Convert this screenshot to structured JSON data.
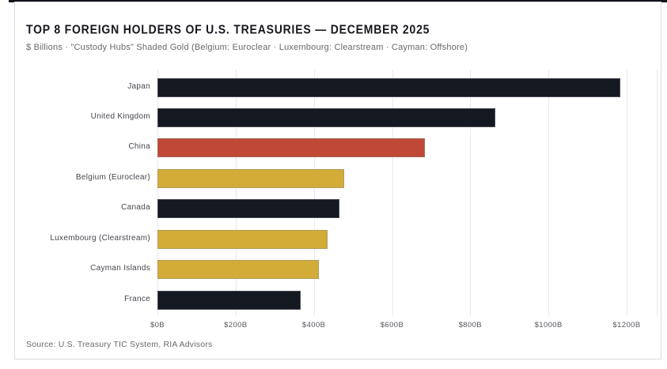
{
  "card": {
    "accent_color": "#10131a",
    "border_color": "#dcdcde"
  },
  "chart_data": {
    "type": "bar",
    "orientation": "horizontal",
    "title": "TOP 8 FOREIGN HOLDERS OF U.S. TREASURIES — DECEMBER 2025",
    "subtitle": "$ Billions · \"Custody Hubs\" Shaded Gold (Belgium: Euroclear · Luxembourg: Clearstream · Cayman: Offshore)",
    "source": "Source: U.S. Treasury TIC System, RIA Advisors",
    "categories": [
      "Japan",
      "United Kingdom",
      "China",
      "Belgium (Euroclear)",
      "Canada",
      "Luxembourg (Clearstream)",
      "Cayman Islands",
      "France"
    ],
    "values": [
      1183,
      865,
      683,
      477,
      466,
      435,
      413,
      367
    ],
    "colors": [
      "#141820",
      "#141820",
      "#bf4936",
      "#d2ac37",
      "#141820",
      "#d2ac37",
      "#d2ac37",
      "#141820"
    ],
    "color_legend": {
      "dark": "#141820",
      "china_red": "#bf4936",
      "custody_hub_gold": "#d2ac37"
    },
    "xlabel": "",
    "ylabel": "",
    "xlim": [
      0,
      1275
    ],
    "xticks": [
      "$0B",
      "$200B",
      "$400B",
      "$600B",
      "$800B",
      "$1000B",
      "$1200B"
    ],
    "xtick_values": [
      0,
      200,
      400,
      600,
      800,
      1000,
      1200
    ],
    "grid": "vertical-light",
    "legend_position": "none"
  }
}
